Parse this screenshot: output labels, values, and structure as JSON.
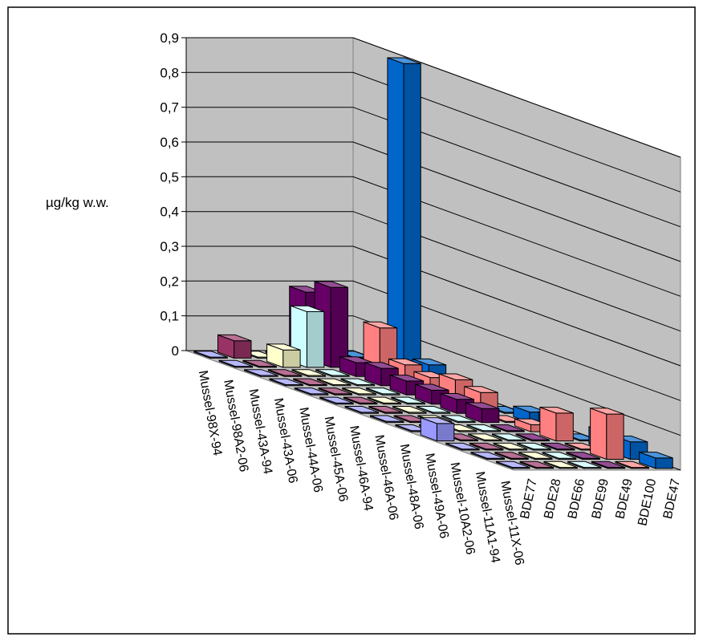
{
  "chart_data": {
    "type": "bar",
    "subtype": "3d-bar",
    "title": "",
    "ylabel": "µg/kg w.w.",
    "ylim": [
      0,
      0.9
    ],
    "yticks": [
      "0",
      "0,1",
      "0,2",
      "0,3",
      "0,4",
      "0,5",
      "0,6",
      "0,7",
      "0,8",
      "0,9"
    ],
    "grid": true,
    "categories": [
      "Mussel-98X-94",
      "Mussel-98A2-06",
      "Mussel-43A-94",
      "Mussel-43A-06",
      "Mussel-44A-06",
      "Mussel-45A-06",
      "Mussel-46A-94",
      "Mussel-46A-06",
      "Mussel-48A-06",
      "Mussel-49A-06",
      "Mussel-10A2-06",
      "Mussel-11A1-94",
      "Mussel-11X-06"
    ],
    "series": [
      {
        "name": "BDE77",
        "color": "#9999ff",
        "values": [
          0,
          0,
          0,
          0,
          0,
          0,
          0,
          0,
          0,
          0.05,
          0,
          0,
          0
        ]
      },
      {
        "name": "BDE28",
        "color": "#993366",
        "values": [
          0.05,
          0,
          0,
          0,
          0,
          0,
          0,
          0,
          0,
          0,
          0,
          0,
          0
        ]
      },
      {
        "name": "BDE66",
        "color": "#ffffcc",
        "values": [
          0,
          0.05,
          0,
          0,
          0,
          0,
          0,
          0,
          0,
          0,
          0,
          0,
          0
        ]
      },
      {
        "name": "BDE99",
        "color": "#ccffff",
        "values": [
          0,
          0.16,
          0,
          0,
          0,
          0,
          0,
          0,
          0,
          0,
          0,
          0,
          0
        ]
      },
      {
        "name": "BDE49",
        "color": "#660066",
        "values": [
          0.19,
          0.23,
          0.04,
          0.05,
          0.04,
          0.04,
          0.04,
          0.04,
          0,
          0,
          0,
          0,
          0
        ]
      },
      {
        "name": "BDE100",
        "color": "#ff8080",
        "values": [
          0,
          0,
          0.14,
          0.06,
          0.05,
          0.07,
          0.06,
          0,
          0.02,
          0.08,
          0,
          0.13,
          0
        ]
      },
      {
        "name": "BDE47",
        "color": "#0066cc",
        "values": [
          0,
          0,
          0.9,
          0.06,
          0,
          0,
          0,
          0.03,
          0.04,
          0,
          0.05,
          0.05,
          0.03
        ]
      }
    ]
  }
}
